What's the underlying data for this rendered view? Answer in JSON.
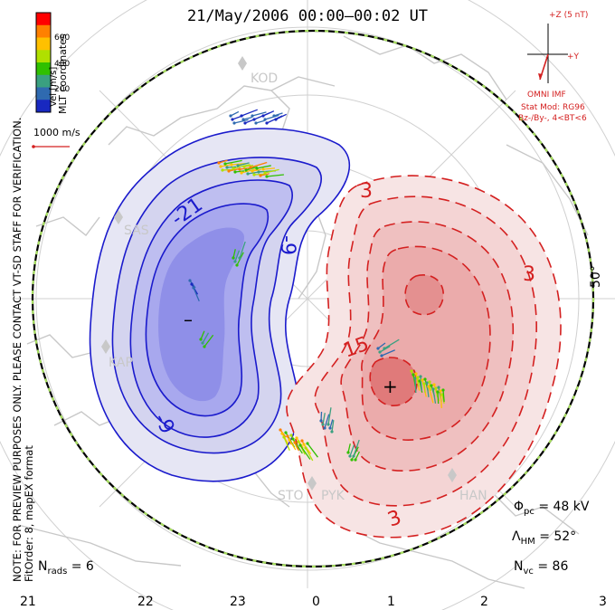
{
  "title": "21/May/2006 00:00–00:02 UT",
  "side_note": {
    "line1": "NOTE: FOR PREVIEW PURPOSES ONLY. PLEASE CONTACT VT-SD STAFF FOR VERIFICATION.",
    "line2": "FitOrder: 8, mapEX format"
  },
  "colorbar": {
    "title": "Vel [m/s]",
    "coord": "MLT coordinates",
    "ticks": [
      "600",
      "400",
      "200"
    ],
    "colors": [
      "#ff0000",
      "#ff8000",
      "#ffc000",
      "#b0e000",
      "#30c000",
      "#3aa080",
      "#2f6ab0",
      "#1828c0"
    ]
  },
  "scale_label": "1000 m/s",
  "imf": {
    "axis_z": "+Z (5 nT)",
    "axis_y": "+Y",
    "source": "OMNI IMF",
    "stat_mod": "Stat Mod: RG96",
    "bz_by": "Bz-/By-, 4<BT<6"
  },
  "stats": {
    "phi_label": "Φ",
    "phi_sub": "pc",
    "phi_value": "= 48 kV",
    "lambda_label": "Λ",
    "lambda_sub": "HM",
    "lambda_value": "= 52°",
    "nvc_label": "N",
    "nvc_sub": "vc",
    "nvc_value": "= 86",
    "nrads_label": "N",
    "nrads_sub": "rads",
    "nrads_value": "= 6"
  },
  "mlt_labels": [
    "21",
    "22",
    "23",
    "0",
    "1",
    "2",
    "3"
  ],
  "lat_label": "50°",
  "stations": [
    "KOD",
    "SAS",
    "KAP",
    "STO",
    "PYK",
    "HAN"
  ],
  "contour_labels": {
    "neg": [
      "-21",
      "-9",
      "-9"
    ],
    "pos": [
      "3",
      "3",
      "15",
      "3"
    ]
  },
  "potential_markers": {
    "min": "–",
    "max": "+"
  },
  "colors": {
    "negative": "#1a1acc",
    "positive": "#d42020",
    "hmb": "#000000",
    "hmb_dash": "#a8e060",
    "land": "#c8c8c8"
  }
}
